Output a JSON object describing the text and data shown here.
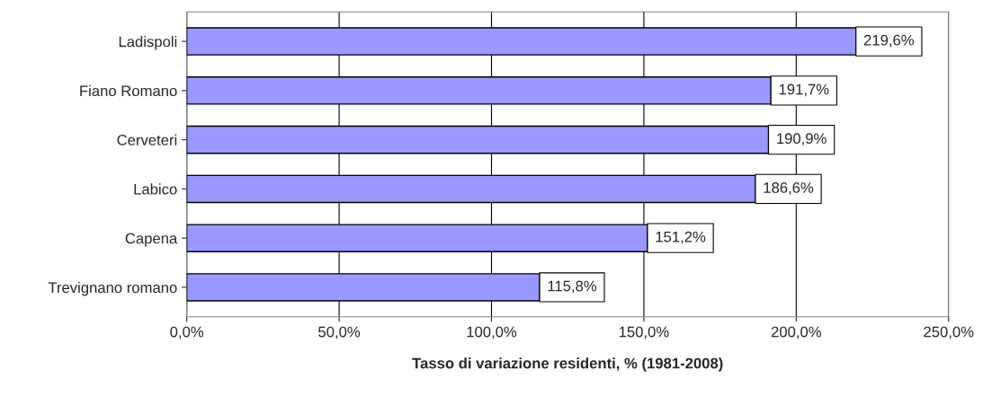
{
  "chart_data": {
    "type": "bar",
    "orientation": "horizontal",
    "categories": [
      "Ladispoli",
      "Fiano Romano",
      "Cerveteri",
      "Labico",
      "Capena",
      "Trevignano romano"
    ],
    "values": [
      219.6,
      191.7,
      190.9,
      186.6,
      151.2,
      115.8
    ],
    "value_labels": [
      "219,6%",
      "191,7%",
      "190,9%",
      "186,6%",
      "151,2%",
      "115,8%"
    ],
    "color": "#9999ff",
    "xlabel": "Tasso di variazione residenti, % (1981-2008)",
    "xlim": [
      0,
      250
    ],
    "xticks": [
      {
        "value": 0,
        "label": "0,0%"
      },
      {
        "value": 50,
        "label": "50,0%"
      },
      {
        "value": 100,
        "label": "100,0%"
      },
      {
        "value": 150,
        "label": "150,0%"
      },
      {
        "value": 200,
        "label": "200,0%"
      },
      {
        "value": 250,
        "label": "250,0%"
      }
    ],
    "grid": "x",
    "legend": false
  }
}
